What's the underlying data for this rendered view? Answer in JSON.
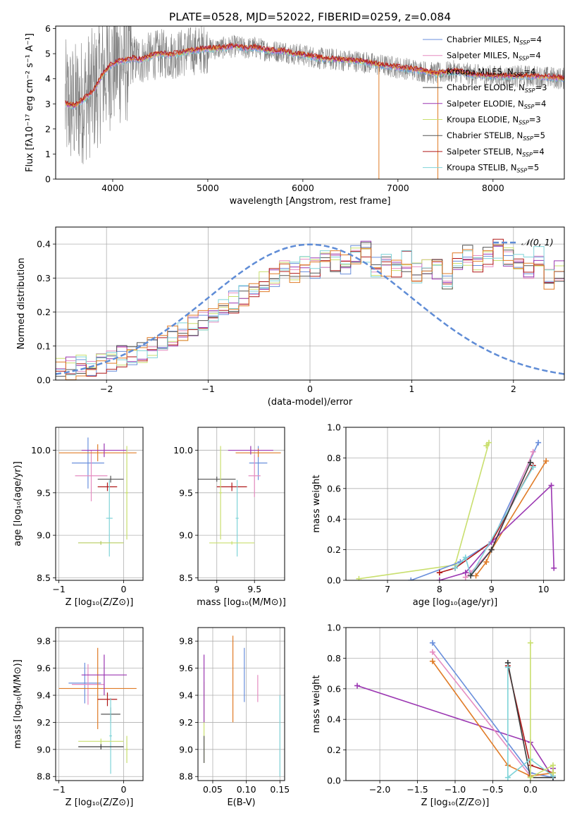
{
  "title": "PLATE=0528, MJD=52022, FIBERID=0259, z=0.084",
  "colors": {
    "chabrier_miles": "#6a8fdc",
    "salpeter_miles": "#e58cc1",
    "kroupa_miles": "#e07b26",
    "chabrier_elodie": "#3b3b3b",
    "salpeter_elodie": "#9b37b2",
    "kroupa_elodie": "#c9df6e",
    "chabrier_stelib": "#555555",
    "salpeter_stelib": "#b01818",
    "kroupa_stelib": "#7fd3d8",
    "spectrum": "#7f7f7f",
    "gauss": "#5f8cd6"
  },
  "chart_data": [
    {
      "id": "spectrum",
      "type": "line",
      "xlabel": "wavelength [Angstrom, rest frame]",
      "ylabel": "Flux [fλ10⁻¹⁷ erg cm⁻² s⁻¹ A⁻¹]",
      "xlim": [
        3400,
        8750
      ],
      "ylim": [
        0,
        6.1
      ],
      "xticks": [
        4000,
        5000,
        6000,
        7000,
        8000
      ],
      "yticks": [
        0,
        1,
        2,
        3,
        4,
        5,
        6
      ],
      "legend_position": "top-right",
      "legend": [
        {
          "text": "Chabrier MILES, N",
          "sub": "SSP",
          "val": "=4",
          "color": "#6a8fdc"
        },
        {
          "text": "Salpeter MILES, N",
          "sub": "SSP",
          "val": "=4",
          "color": "#e58cc1"
        },
        {
          "text": "Kroupa MILES, N",
          "sub": "SSP",
          "val": "=4",
          "color": "#e07b26"
        },
        {
          "text": "Chabrier ELODIE, N",
          "sub": "SSP",
          "val": "=3",
          "color": "#3b3b3b"
        },
        {
          "text": "Salpeter ELODIE, N",
          "sub": "SSP",
          "val": "=4",
          "color": "#9b37b2"
        },
        {
          "text": "Kroupa ELODIE, N",
          "sub": "SSP",
          "val": "=3",
          "color": "#c9df6e"
        },
        {
          "text": "Chabrier STELIB, N",
          "sub": "SSP",
          "val": "=5",
          "color": "#555555"
        },
        {
          "text": "Salpeter STELIB, N",
          "sub": "SSP",
          "val": "=4",
          "color": "#b01818"
        },
        {
          "text": "Kroupa STELIB, N",
          "sub": "SSP",
          "val": "=5",
          "color": "#7fd3d8"
        }
      ],
      "model_curve": {
        "x": [
          3500,
          3600,
          3700,
          3800,
          3900,
          4000,
          4100,
          4200,
          4300,
          4400,
          4500,
          4600,
          4700,
          4800,
          4900,
          5000,
          5100,
          5200,
          5300,
          5400,
          5500,
          5600,
          5700,
          5800,
          5900,
          6000,
          6200,
          6400,
          6600,
          6800,
          7000,
          7200,
          7400,
          7600,
          7800,
          8000,
          8200,
          8400,
          8600,
          8750
        ],
        "y": [
          3.0,
          2.9,
          3.2,
          3.5,
          4.2,
          4.6,
          4.7,
          4.8,
          4.75,
          4.9,
          5.0,
          4.95,
          5.0,
          5.1,
          5.15,
          5.2,
          5.2,
          5.25,
          5.3,
          5.2,
          5.25,
          5.15,
          5.1,
          5.1,
          5.0,
          4.95,
          4.8,
          4.75,
          4.7,
          4.55,
          4.45,
          4.35,
          4.2,
          4.3,
          4.15,
          4.1,
          4.1,
          4.1,
          4.05,
          4.0
        ]
      }
    },
    {
      "id": "residuals",
      "type": "histogram",
      "xlabel": "(data-model)/error",
      "ylabel": "Normed distribution",
      "xlim": [
        -2.5,
        2.5
      ],
      "ylim": [
        0,
        0.45
      ],
      "xticks": [
        -2,
        -1,
        0,
        1,
        2
      ],
      "yticks": [
        0.0,
        0.1,
        0.2,
        0.3,
        0.4
      ],
      "legend_position": "top-right",
      "legend_label": "𝒩(0, 1)",
      "bins_start": -2.5,
      "bin_width": 0.1,
      "base_values": [
        0.03,
        0.035,
        0.04,
        0.045,
        0.05,
        0.06,
        0.07,
        0.075,
        0.085,
        0.1,
        0.11,
        0.13,
        0.14,
        0.16,
        0.18,
        0.2,
        0.21,
        0.23,
        0.25,
        0.27,
        0.29,
        0.3,
        0.33,
        0.32,
        0.34,
        0.33,
        0.36,
        0.35,
        0.34,
        0.37,
        0.38,
        0.33,
        0.34,
        0.33,
        0.35,
        0.31,
        0.32,
        0.33,
        0.3,
        0.34,
        0.37,
        0.35,
        0.36,
        0.38,
        0.37,
        0.34,
        0.33,
        0.36,
        0.3,
        0.32,
        0.29,
        0.28,
        0.27,
        0.25,
        0.23,
        0.24,
        0.22,
        0.2,
        0.18,
        0.17,
        0.16,
        0.15,
        0.14,
        0.13,
        0.12,
        0.11,
        0.1,
        0.1,
        0.09,
        0.08,
        0.08,
        0.075,
        0.07,
        0.065,
        0.06,
        0.055,
        0.05,
        0.05,
        0.045,
        0.04,
        0.04,
        0.035,
        0.03,
        0.03,
        0.03,
        0.025,
        0.025,
        0.02,
        0.02,
        0.02,
        0.03,
        0.04,
        0.05,
        0.06,
        0.07,
        0.08,
        0.09,
        0.08,
        0.06,
        0.05
      ]
    },
    {
      "id": "age-vs-z",
      "type": "errorbar",
      "xlabel": "Z [log₁₀(Z/Z⊙)]",
      "ylabel": "age [log₁₀(age/yr)]",
      "xlim": [
        -1.05,
        0.3
      ],
      "ylim": [
        8.47,
        10.27
      ],
      "xticks": [
        -1,
        0
      ],
      "yticks": [
        8.5,
        9.0,
        9.5,
        10.0
      ],
      "points": [
        {
          "x": -0.55,
          "y": 9.85,
          "xerr": 0.25,
          "yerr": 0.3,
          "color": "#6a8fdc"
        },
        {
          "x": -0.5,
          "y": 9.7,
          "xerr": 0.25,
          "yerr": 0.3,
          "color": "#e58cc1"
        },
        {
          "x": -0.4,
          "y": 9.97,
          "xerr": 0.6,
          "yerr": 0.1,
          "color": "#e07b26"
        },
        {
          "x": -0.3,
          "y": 10.0,
          "xerr": 0.35,
          "yerr": 0.08,
          "color": "#9b37b2"
        },
        {
          "x": -0.25,
          "y": 9.57,
          "xerr": 0.15,
          "yerr": 0.05,
          "color": "#b01818"
        },
        {
          "x": -0.2,
          "y": 9.66,
          "xerr": 0.2,
          "yerr": 0.04,
          "color": "#555555"
        },
        {
          "x": -0.22,
          "y": 9.2,
          "xerr": 0.05,
          "yerr": 0.45,
          "color": "#7fd3d8"
        },
        {
          "x": -0.35,
          "y": 8.91,
          "xerr": 0.35,
          "yerr": 0.02,
          "color": "#3b3b3b"
        },
        {
          "x": -0.35,
          "y": 8.91,
          "xerr": 0.35,
          "yerr": 0.02,
          "color": "#c9df6e"
        },
        {
          "x": 0.05,
          "y": 9.5,
          "xerr": 0.02,
          "yerr": 0.55,
          "color": "#c9df6e"
        }
      ]
    },
    {
      "id": "age-vs-mass",
      "type": "errorbar",
      "xlabel": "mass [log₁₀(M/M⊙)]",
      "ylabel": "",
      "xlim": [
        8.75,
        9.9
      ],
      "ylim": [
        8.47,
        10.27
      ],
      "xticks": [
        9.0,
        9.5
      ],
      "yticks": [
        8.5,
        9.0,
        9.5,
        10.0
      ],
      "points": [
        {
          "x": 9.55,
          "y": 9.85,
          "xerr": 0.12,
          "yerr": 0.2,
          "color": "#6a8fdc"
        },
        {
          "x": 9.5,
          "y": 9.7,
          "xerr": 0.08,
          "yerr": 0.25,
          "color": "#e58cc1"
        },
        {
          "x": 9.55,
          "y": 9.97,
          "xerr": 0.3,
          "yerr": 0.05,
          "color": "#e07b26"
        },
        {
          "x": 9.45,
          "y": 10.0,
          "xerr": 0.3,
          "yerr": 0.05,
          "color": "#9b37b2"
        },
        {
          "x": 9.2,
          "y": 9.57,
          "xerr": 0.2,
          "yerr": 0.05,
          "color": "#b01818"
        },
        {
          "x": 9.0,
          "y": 9.66,
          "xerr": 0.25,
          "yerr": 0.03,
          "color": "#555555"
        },
        {
          "x": 9.27,
          "y": 9.2,
          "xerr": 0.02,
          "yerr": 0.45,
          "color": "#7fd3d8"
        },
        {
          "x": 9.2,
          "y": 8.91,
          "xerr": 0.3,
          "yerr": 0.02,
          "color": "#c9df6e"
        },
        {
          "x": 9.05,
          "y": 9.5,
          "xerr": 0.02,
          "yerr": 0.55,
          "color": "#c9df6e"
        }
      ]
    },
    {
      "id": "weight-vs-age",
      "type": "line",
      "xlabel": "age [log₁₀(age/yr)]",
      "ylabel": "mass weight",
      "xlim": [
        6.2,
        10.4
      ],
      "ylim": [
        0,
        1.0
      ],
      "xticks": [
        7,
        8,
        9,
        10
      ],
      "yticks": [
        0.0,
        0.2,
        0.4,
        0.6,
        0.8,
        1.0
      ],
      "series": [
        {
          "color": "#c9df6e",
          "x": [
            6.45,
            8.3,
            8.95,
            8.9
          ],
          "y": [
            0.01,
            0.1,
            0.9,
            0.88
          ]
        },
        {
          "color": "#6a8fdc",
          "x": [
            7.45,
            8.4,
            9.0,
            9.9
          ],
          "y": [
            0.0,
            0.12,
            0.25,
            0.9
          ]
        },
        {
          "color": "#e58cc1",
          "x": [
            8.5,
            8.6,
            9.0,
            9.8
          ],
          "y": [
            0.02,
            0.05,
            0.2,
            0.84
          ]
        },
        {
          "color": "#e07b26",
          "x": [
            8.7,
            8.9,
            9.0,
            10.05
          ],
          "y": [
            0.03,
            0.12,
            0.2,
            0.78
          ]
        },
        {
          "color": "#b01818",
          "x": [
            8.0,
            8.3,
            9.0,
            9.8
          ],
          "y": [
            0.05,
            0.08,
            0.25,
            0.75
          ]
        },
        {
          "color": "#9b37b2",
          "x": [
            8.0,
            8.5,
            9.0,
            10.15,
            10.2
          ],
          "y": [
            0.0,
            0.05,
            0.25,
            0.62,
            0.08
          ]
        },
        {
          "color": "#7fd3d8",
          "x": [
            8.3,
            8.5,
            8.6,
            9.8
          ],
          "y": [
            0.08,
            0.15,
            0.03,
            0.74
          ]
        },
        {
          "color": "#3b3b3b",
          "x": [
            8.6,
            9.0,
            9.75
          ],
          "y": [
            0.03,
            0.2,
            0.77
          ]
        }
      ]
    },
    {
      "id": "mass-vs-z",
      "type": "errorbar",
      "xlabel": "Z [log₁₀(Z/Z⊙)]",
      "ylabel": "mass [log₁₀(M/M⊙)]",
      "xlim": [
        -1.05,
        0.3
      ],
      "ylim": [
        8.77,
        9.9
      ],
      "xticks": [
        -1,
        0
      ],
      "yticks": [
        8.8,
        9.0,
        9.2,
        9.4,
        9.6,
        9.8
      ],
      "points": [
        {
          "x": -0.6,
          "y": 9.49,
          "xerr": 0.25,
          "yerr": 0.15,
          "color": "#6a8fdc"
        },
        {
          "x": -0.55,
          "y": 9.48,
          "xerr": 0.25,
          "yerr": 0.15,
          "color": "#e58cc1"
        },
        {
          "x": -0.4,
          "y": 9.45,
          "xerr": 0.6,
          "yerr": 0.3,
          "color": "#e07b26"
        },
        {
          "x": -0.3,
          "y": 9.55,
          "xerr": 0.35,
          "yerr": 0.15,
          "color": "#9b37b2"
        },
        {
          "x": -0.25,
          "y": 9.37,
          "xerr": 0.15,
          "yerr": 0.05,
          "color": "#b01818"
        },
        {
          "x": -0.2,
          "y": 9.26,
          "xerr": 0.15,
          "yerr": 0.05,
          "color": "#555555"
        },
        {
          "x": -0.2,
          "y": 9.1,
          "xerr": 0.02,
          "yerr": 0.28,
          "color": "#7fd3d8"
        },
        {
          "x": -0.35,
          "y": 9.02,
          "xerr": 0.35,
          "yerr": 0.02,
          "color": "#3b3b3b"
        },
        {
          "x": -0.35,
          "y": 9.06,
          "xerr": 0.35,
          "yerr": 0.02,
          "color": "#c9df6e"
        },
        {
          "x": 0.05,
          "y": 9.0,
          "xerr": 0.02,
          "yerr": 0.1,
          "color": "#c9df6e"
        }
      ]
    },
    {
      "id": "mass-vs-ebv",
      "type": "errorbar",
      "xlabel": "E(B-V)",
      "ylabel": "",
      "xlim": [
        0.028,
        0.157
      ],
      "ylim": [
        8.77,
        9.9
      ],
      "xticks": [
        0.05,
        0.1,
        0.15
      ],
      "yticks": [
        8.8,
        9.0,
        9.2,
        9.4,
        9.6,
        9.8
      ],
      "points": [
        {
          "x": 0.037,
          "y": 9.2,
          "xerr": 0,
          "yerr": 0.3,
          "color": "#c9df6e"
        },
        {
          "x": 0.037,
          "y": 9.45,
          "xerr": 0,
          "yerr": 0.25,
          "color": "#9b37b2"
        },
        {
          "x": 0.037,
          "y": 9.0,
          "xerr": 0,
          "yerr": 0.1,
          "color": "#555555"
        },
        {
          "x": 0.08,
          "y": 9.52,
          "xerr": 0,
          "yerr": 0.32,
          "color": "#e07b26"
        },
        {
          "x": 0.097,
          "y": 9.55,
          "xerr": 0,
          "yerr": 0.2,
          "color": "#6a8fdc"
        },
        {
          "x": 0.117,
          "y": 9.45,
          "xerr": 0,
          "yerr": 0.1,
          "color": "#e58cc1"
        },
        {
          "x": 0.15,
          "y": 9.1,
          "xerr": 0,
          "yerr": 0.3,
          "color": "#7fd3d8"
        }
      ]
    },
    {
      "id": "weight-vs-z",
      "type": "line",
      "xlabel": "Z [log₁₀(Z/Z⊙)]",
      "ylabel": "mass weight",
      "xlim": [
        -2.45,
        0.45
      ],
      "ylim": [
        0,
        1.0
      ],
      "xticks": [
        -2.0,
        -1.5,
        -1.0,
        -0.5,
        0.0
      ],
      "yticks": [
        0.0,
        0.2,
        0.4,
        0.6,
        0.8,
        1.0
      ],
      "series": [
        {
          "color": "#9b37b2",
          "x": [
            -2.3,
            0.0,
            0.3,
            0.3
          ],
          "y": [
            0.62,
            0.25,
            0.02,
            0.08
          ]
        },
        {
          "color": "#6a8fdc",
          "x": [
            -1.3,
            0.0,
            0.3
          ],
          "y": [
            0.9,
            0.05,
            0.02
          ]
        },
        {
          "color": "#e58cc1",
          "x": [
            -1.3,
            0.0,
            0.3
          ],
          "y": [
            0.84,
            0.03,
            0.05
          ]
        },
        {
          "color": "#e07b26",
          "x": [
            -1.3,
            -0.3,
            0.0,
            0.3
          ],
          "y": [
            0.78,
            0.1,
            0.03,
            0.05
          ]
        },
        {
          "color": "#b01818",
          "x": [
            -0.3,
            0.0,
            0.3
          ],
          "y": [
            0.75,
            0.1,
            0.05
          ]
        },
        {
          "color": "#3b3b3b",
          "x": [
            -0.3,
            0.0,
            0.3
          ],
          "y": [
            0.77,
            0.02,
            0.02
          ]
        },
        {
          "color": "#7fd3d8",
          "x": [
            -0.3,
            -0.3,
            0.0,
            0.3
          ],
          "y": [
            0.74,
            0.02,
            0.14,
            0.03
          ]
        },
        {
          "color": "#c9df6e",
          "x": [
            0.0,
            0.0,
            0.3,
            0.3
          ],
          "y": [
            0.9,
            0.02,
            0.1,
            0.05
          ]
        }
      ]
    }
  ]
}
